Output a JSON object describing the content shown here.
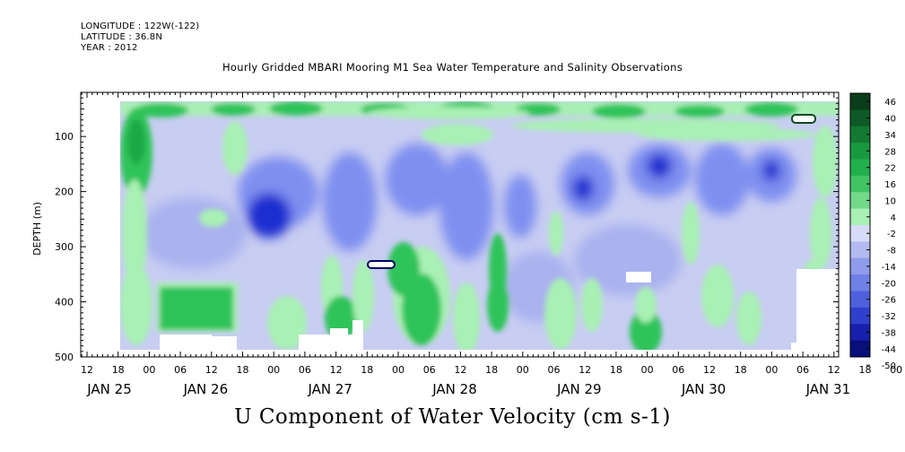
{
  "header": {
    "longitude": "LONGITUDE : 122W(-122)",
    "latitude": "LATITUDE : 36.8N",
    "year": "YEAR : 2012"
  },
  "chart_data": {
    "type": "heatmap",
    "title": "Hourly Gridded MBARI Mooring M1 Sea Water Temperature and Salinity Observations",
    "subtitle": "U Component of Water Velocity (cm s-1)",
    "ylabel": "DEPTH (m)",
    "ylim": [
      500,
      20
    ],
    "y_ticks": [
      100,
      200,
      300,
      400,
      500
    ],
    "x_hour_ticks": [
      "12",
      "18",
      "00",
      "06",
      "12",
      "18",
      "00",
      "06",
      "12",
      "18",
      "00",
      "06",
      "12",
      "18",
      "00",
      "06",
      "12",
      "18",
      "00",
      "06",
      "12",
      "18",
      "00",
      "06",
      "12",
      "18",
      "00",
      "06",
      "12"
    ],
    "date_labels": [
      "JAN 25",
      "JAN 26",
      "JAN 27",
      "JAN 28",
      "JAN 29",
      "JAN 30",
      "JAN 31"
    ],
    "colorbar": {
      "levels": [
        46,
        40,
        34,
        28,
        22,
        16,
        10,
        4,
        -2,
        -8,
        -14,
        -20,
        -26,
        -32,
        -38,
        -44,
        -50
      ],
      "labels": [
        "46",
        "40",
        "34",
        "28",
        "22",
        "16",
        "10",
        "4",
        "-2",
        "-8",
        "-14",
        "-20",
        "-26",
        "-32",
        "-38",
        "-44",
        "-50"
      ]
    },
    "colors": {
      "high": "#0b4a1f",
      "mid_green": "#2fc45a",
      "light_green": "#a8f0b4",
      "light_blue": "#c8cdf2",
      "mid_blue": "#7f8ff0",
      "deep_blue": "#1c2fd0",
      "low": "#000066"
    }
  }
}
